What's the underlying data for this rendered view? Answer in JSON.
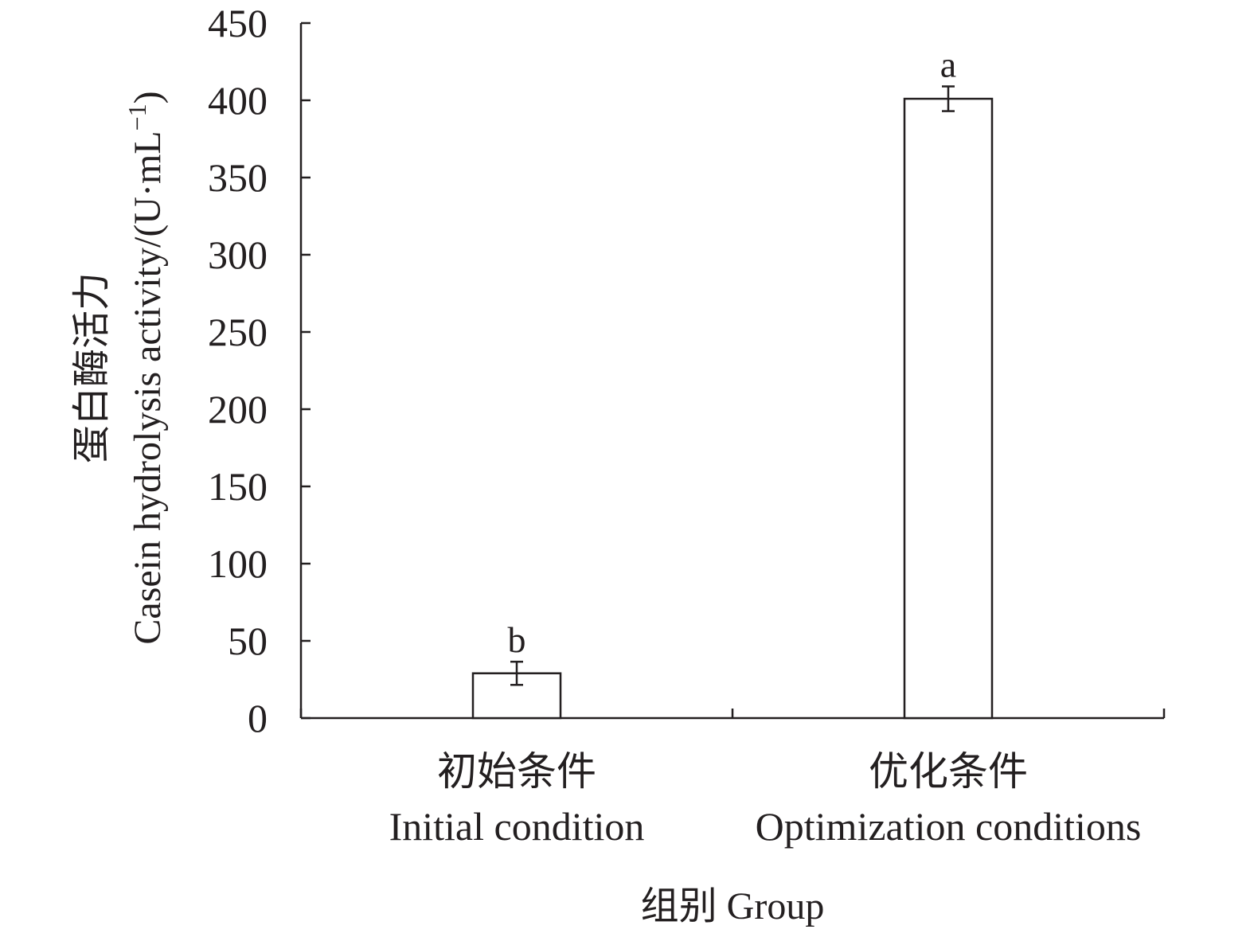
{
  "chart_data": {
    "type": "bar",
    "categories": [
      {
        "zh": "初始条件",
        "en": "Initial condition"
      },
      {
        "zh": "优化条件",
        "en": "Optimization conditions"
      }
    ],
    "values": [
      29,
      401
    ],
    "errors": [
      7.5,
      8
    ],
    "significance_labels": [
      "b",
      "a"
    ],
    "xlabel": "组别 Group",
    "ylabel_zh": "蛋白酶活力",
    "ylabel_en": "Casein hydrolysis activity/(U·mL",
    "ylabel_superscript": "−1",
    "ylabel_close": ")",
    "ylim": [
      0,
      450
    ],
    "yticks": [
      0,
      50,
      100,
      150,
      200,
      250,
      300,
      350,
      400,
      450
    ],
    "bar_fill": "#ffffff",
    "bar_stroke": "#231f20",
    "axis_color": "#231f20",
    "grid": false,
    "legend": "none"
  }
}
